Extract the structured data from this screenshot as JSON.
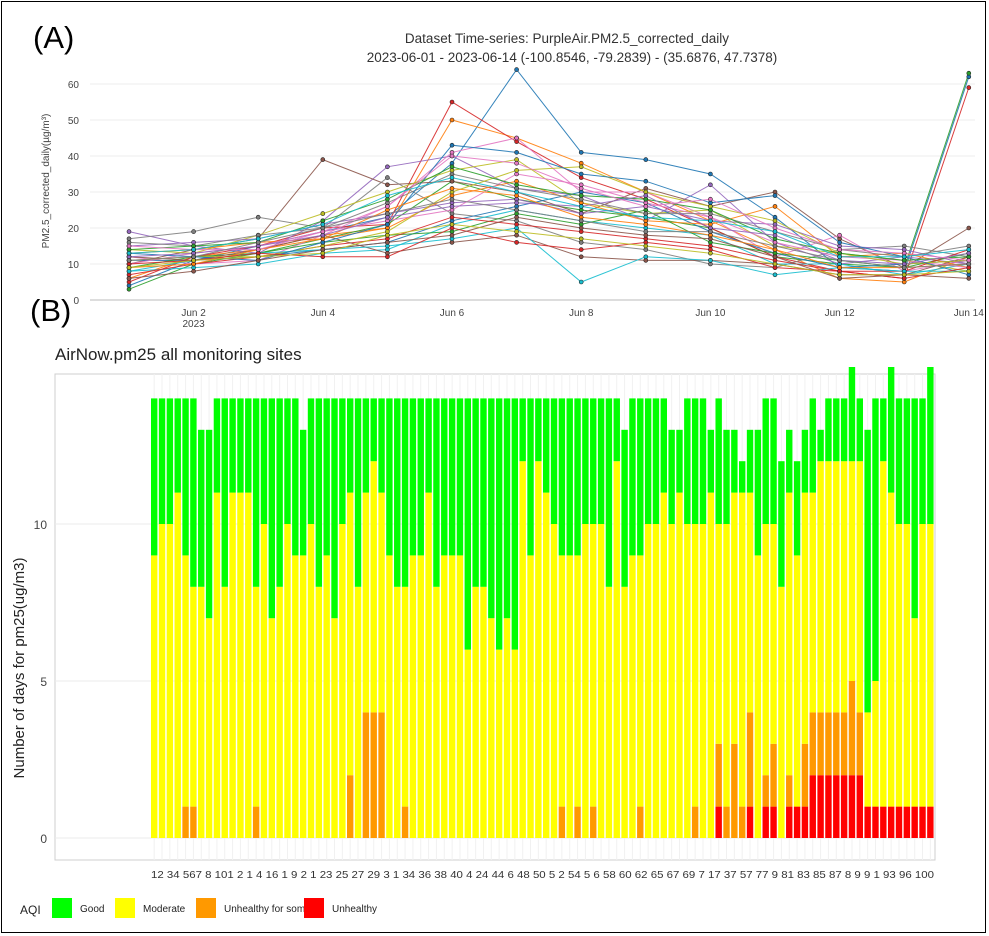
{
  "panel_labels": {
    "a": "(A)",
    "b": "(B)"
  },
  "chart_data": [
    {
      "type": "line",
      "title": "Dataset Time-series: PurpleAir.PM2.5_corrected_daily",
      "subtitle": "2023-06-01 - 2023-06-14 (-100.8546, -79.2839) - (35.6876, 47.7378)",
      "ylabel": "PM2.5_corrected_daily(µg/m³)",
      "xlabel": "",
      "x": [
        "2023-06-01",
        "2023-06-02",
        "2023-06-03",
        "2023-06-04",
        "2023-06-05",
        "2023-06-06",
        "2023-06-07",
        "2023-06-08",
        "2023-06-09",
        "2023-06-10",
        "2023-06-11",
        "2023-06-12",
        "2023-06-13",
        "2023-06-14"
      ],
      "x_tick_labels": [
        "Jun 2",
        "Jun 4",
        "Jun 6",
        "Jun 8",
        "Jun 10",
        "Jun 12",
        "Jun 14"
      ],
      "x_year_label": "2023",
      "y_ticks": [
        0,
        10,
        20,
        30,
        40,
        50,
        60
      ],
      "ylim": [
        0,
        65
      ],
      "grid": true,
      "series_colors": [
        "#1f77b4",
        "#ff7f0e",
        "#2ca02c",
        "#d62728",
        "#9467bd",
        "#8c564b",
        "#e377c2",
        "#7f7f7f",
        "#bcbd22",
        "#17becf"
      ],
      "series": [
        {
          "values": [
            4,
            11,
            15,
            19,
            23,
            38,
            64,
            41,
            39,
            35,
            23,
            9,
            8,
            62
          ]
        },
        {
          "values": [
            6,
            12,
            14,
            18,
            20,
            50,
            45,
            38,
            30,
            22,
            14,
            6,
            5,
            12
          ]
        },
        {
          "values": [
            3,
            10,
            13,
            17,
            21,
            33,
            28,
            25,
            23,
            20,
            12,
            10,
            9,
            63
          ]
        },
        {
          "values": [
            5,
            12,
            15,
            20,
            21,
            55,
            44,
            34,
            28,
            20,
            12,
            8,
            6,
            59
          ]
        },
        {
          "values": [
            19,
            15,
            13,
            22,
            37,
            40,
            31,
            29,
            22,
            32,
            16,
            10,
            12,
            10
          ]
        },
        {
          "values": [
            10,
            14,
            17,
            39,
            32,
            33,
            30,
            24,
            31,
            26,
            30,
            17,
            9,
            20
          ]
        },
        {
          "values": [
            12,
            10,
            11,
            18,
            26,
            41,
            45,
            30,
            30,
            23,
            12,
            18,
            8,
            11
          ]
        },
        {
          "values": [
            17,
            19,
            23,
            20,
            34,
            24,
            22,
            16,
            14,
            10,
            9,
            14,
            15,
            12
          ]
        },
        {
          "values": [
            14,
            13,
            18,
            24,
            30,
            36,
            39,
            27,
            24,
            25,
            15,
            13,
            11,
            8
          ]
        },
        {
          "values": [
            8,
            9,
            10,
            13,
            14,
            21,
            25,
            22,
            20,
            18,
            10,
            10,
            7,
            10
          ]
        },
        {
          "values": [
            11,
            11,
            12,
            14,
            16,
            22,
            26,
            30,
            27,
            19,
            13,
            9,
            10,
            11
          ]
        },
        {
          "values": [
            13,
            14,
            16,
            17,
            20,
            29,
            33,
            27,
            22,
            21,
            26,
            12,
            13,
            9
          ]
        },
        {
          "values": [
            9,
            12,
            13,
            16,
            18,
            19,
            24,
            21,
            25,
            16,
            13,
            11,
            9,
            13
          ]
        },
        {
          "values": [
            7,
            10,
            12,
            15,
            17,
            23,
            21,
            19,
            17,
            15,
            11,
            8,
            8,
            14
          ]
        },
        {
          "values": [
            15,
            16,
            17,
            21,
            24,
            27,
            28,
            24,
            26,
            22,
            21,
            15,
            14,
            10
          ]
        },
        {
          "values": [
            12,
            11,
            14,
            18,
            13,
            16,
            18,
            12,
            11,
            11,
            10,
            7,
            7,
            12
          ]
        },
        {
          "values": [
            10,
            13,
            15,
            19,
            22,
            25,
            35,
            32,
            27,
            23,
            16,
            12,
            11,
            9
          ]
        },
        {
          "values": [
            16,
            15,
            18,
            20,
            27,
            35,
            31,
            28,
            24,
            24,
            19,
            14,
            12,
            15
          ]
        },
        {
          "values": [
            11,
            12,
            12,
            15,
            19,
            30,
            36,
            37,
            30,
            26,
            22,
            13,
            10,
            11
          ]
        },
        {
          "values": [
            8,
            11,
            13,
            14,
            15,
            17,
            20,
            5,
            12,
            11,
            7,
            9,
            8,
            8
          ]
        },
        {
          "values": [
            13,
            12,
            11,
            16,
            21,
            43,
            41,
            35,
            33,
            27,
            29,
            16,
            12,
            7
          ]
        },
        {
          "values": [
            9,
            10,
            14,
            17,
            25,
            31,
            29,
            23,
            21,
            18,
            14,
            9,
            9,
            10
          ]
        },
        {
          "values": [
            14,
            15,
            16,
            22,
            28,
            37,
            32,
            29,
            28,
            25,
            17,
            13,
            11,
            12
          ]
        },
        {
          "values": [
            10,
            11,
            13,
            12,
            12,
            20,
            16,
            14,
            16,
            14,
            9,
            8,
            6,
            9
          ]
        },
        {
          "values": [
            12,
            13,
            15,
            18,
            23,
            26,
            27,
            26,
            29,
            20,
            18,
            11,
            10,
            13
          ]
        },
        {
          "values": [
            6,
            8,
            11,
            14,
            16,
            18,
            23,
            20,
            18,
            17,
            12,
            6,
            7,
            6
          ]
        },
        {
          "values": [
            15,
            14,
            14,
            19,
            26,
            40,
            38,
            31,
            26,
            28,
            20,
            14,
            13,
            11
          ]
        },
        {
          "values": [
            11,
            12,
            16,
            20,
            24,
            28,
            25,
            22,
            19,
            19,
            15,
            11,
            9,
            10
          ]
        },
        {
          "values": [
            9,
            11,
            12,
            13,
            18,
            21,
            19,
            17,
            15,
            13,
            10,
            7,
            7,
            8
          ]
        },
        {
          "values": [
            13,
            14,
            17,
            21,
            29,
            34,
            30,
            26,
            23,
            22,
            19,
            12,
            12,
            14
          ]
        }
      ]
    },
    {
      "type": "bar",
      "stacked": true,
      "title": "AirNow.pm25 all monitoring sites",
      "ylabel": "Number of days for pm25(ug/m3)",
      "xlabel": "",
      "y_ticks": [
        0,
        5,
        10
      ],
      "ylim": [
        0,
        14.7
      ],
      "grid": true,
      "x_tick_text": "12 34 567 8  101 2 1 4 16   1 9 2 1 23 25 27 29 3 1   34 36 38 40 4 24 44 6 48 50 5 2 54 5 6 58 60 62   65 67 69 7 17 37 57 77 9 81 83 85 87 8 9 9 1 93   96   100",
      "legend": {
        "title": "AQI",
        "position": "bottom",
        "items": [
          {
            "label": "Good",
            "color": "#00ff00"
          },
          {
            "label": "Moderate",
            "color": "#ffff00"
          },
          {
            "label": "Unhealthy for some",
            "color": "#ff9900"
          },
          {
            "label": "Unhealthy",
            "color": "#ff0000"
          }
        ]
      },
      "n_sites": 100,
      "good": [
        5,
        4,
        4,
        3,
        5,
        6,
        5,
        6,
        3,
        6,
        3,
        3,
        3,
        6,
        4,
        7,
        6,
        4,
        5,
        4,
        4,
        6,
        5,
        7,
        4,
        3,
        6,
        3,
        2,
        3,
        5,
        6,
        6,
        5,
        5,
        3,
        6,
        5,
        5,
        5,
        8,
        6,
        6,
        7,
        8,
        7,
        8,
        2,
        5,
        2,
        3,
        4,
        5,
        5,
        5,
        4,
        4,
        4,
        6,
        2,
        5,
        5,
        5,
        4,
        4,
        3,
        3,
        2,
        4,
        4,
        4,
        2,
        4,
        3,
        2,
        1,
        2,
        4,
        4,
        4,
        4,
        2,
        3,
        2,
        3,
        1,
        2,
        2,
        2,
        3,
        2,
        9,
        9,
        2,
        4,
        4,
        4,
        7,
        4,
        5
      ],
      "moderate": [
        9,
        10,
        10,
        11,
        8,
        7,
        8,
        7,
        11,
        8,
        11,
        11,
        11,
        7,
        10,
        7,
        8,
        10,
        9,
        9,
        10,
        8,
        9,
        7,
        10,
        9,
        8,
        7,
        8,
        7,
        9,
        8,
        7,
        9,
        9,
        11,
        8,
        9,
        9,
        9,
        6,
        8,
        8,
        7,
        6,
        7,
        6,
        12,
        9,
        12,
        11,
        10,
        8,
        9,
        8,
        10,
        9,
        10,
        8,
        12,
        8,
        9,
        8,
        10,
        10,
        11,
        10,
        11,
        10,
        9,
        10,
        11,
        7,
        9,
        8,
        10,
        7,
        9,
        8,
        7,
        8,
        9,
        8,
        8,
        7,
        8,
        8,
        8,
        8,
        7,
        8,
        3,
        4,
        11,
        10,
        9,
        9,
        6,
        9,
        9
      ],
      "unhealthy_sensitive": [
        0,
        0,
        0,
        0,
        1,
        1,
        0,
        0,
        0,
        0,
        0,
        0,
        0,
        1,
        0,
        0,
        0,
        0,
        0,
        0,
        0,
        0,
        0,
        0,
        0,
        2,
        0,
        4,
        4,
        4,
        0,
        0,
        1,
        0,
        0,
        0,
        0,
        0,
        0,
        0,
        0,
        0,
        0,
        0,
        0,
        0,
        0,
        0,
        0,
        0,
        0,
        0,
        1,
        0,
        1,
        0,
        1,
        0,
        0,
        0,
        0,
        0,
        1,
        0,
        0,
        0,
        0,
        0,
        0,
        1,
        0,
        0,
        2,
        1,
        3,
        1,
        3,
        0,
        1,
        2,
        0,
        1,
        0,
        2,
        2,
        2,
        2,
        2,
        2,
        3,
        2,
        0,
        0,
        0,
        0,
        0,
        0,
        0,
        0,
        0
      ],
      "unhealthy": [
        0,
        0,
        0,
        0,
        0,
        0,
        0,
        0,
        0,
        0,
        0,
        0,
        0,
        0,
        0,
        0,
        0,
        0,
        0,
        0,
        0,
        0,
        0,
        0,
        0,
        0,
        0,
        0,
        0,
        0,
        0,
        0,
        0,
        0,
        0,
        0,
        0,
        0,
        0,
        0,
        0,
        0,
        0,
        0,
        0,
        0,
        0,
        0,
        0,
        0,
        0,
        0,
        0,
        0,
        0,
        0,
        0,
        0,
        0,
        0,
        0,
        0,
        0,
        0,
        0,
        0,
        0,
        0,
        0,
        0,
        0,
        0,
        1,
        0,
        0,
        0,
        1,
        0,
        1,
        1,
        0,
        1,
        1,
        1,
        2,
        2,
        2,
        2,
        2,
        2,
        2,
        1,
        1,
        1,
        1,
        1,
        1,
        1,
        1,
        1
      ]
    }
  ]
}
